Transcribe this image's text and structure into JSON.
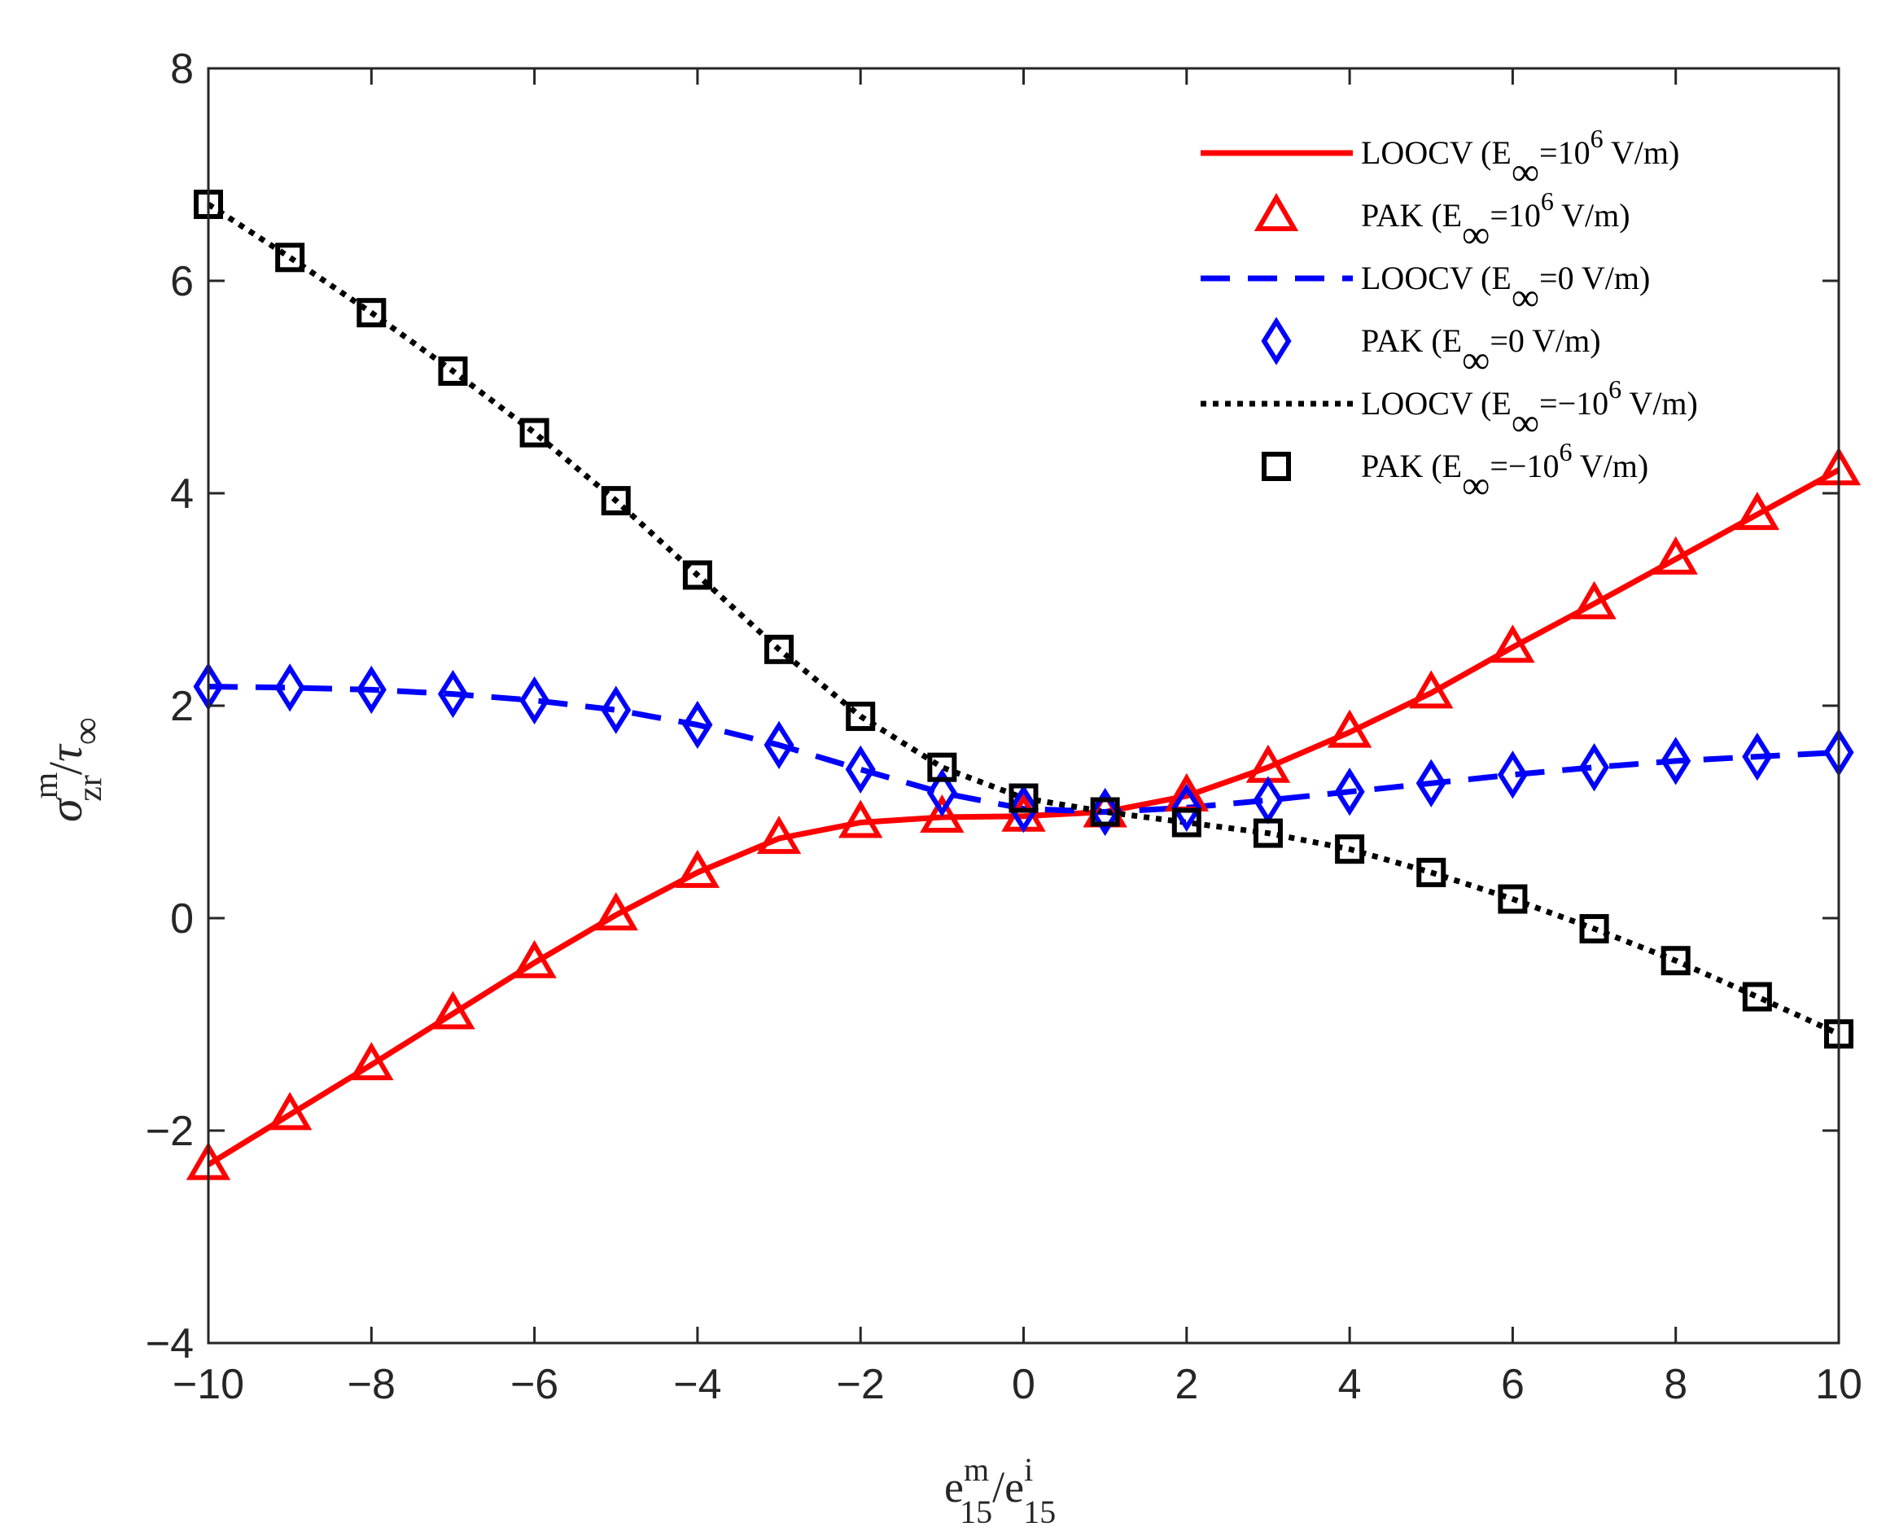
{
  "chart_data": {
    "type": "line",
    "xlabel": {
      "base": "e",
      "sup": "m",
      "sub": "15",
      "sep": "/",
      "base2": "e",
      "sup2": "i",
      "sub2": "15"
    },
    "ylabel": {
      "sigma": "σ",
      "sup": "m",
      "sub": "zr",
      "sep": "/",
      "tau": "τ",
      "tau_sub": "∞"
    },
    "xlim": [
      -10,
      10
    ],
    "ylim": [
      -4,
      8
    ],
    "xticks": [
      -10,
      -8,
      -6,
      -4,
      -2,
      0,
      2,
      4,
      6,
      8,
      10
    ],
    "xtick_labels": [
      "−10",
      "−8",
      "−6",
      "−4",
      "−2",
      "0",
      "2",
      "4",
      "6",
      "8",
      "10"
    ],
    "yticks": [
      -4,
      -2,
      0,
      2,
      4,
      6,
      8
    ],
    "ytick_labels": [
      "−4",
      "−2",
      "0",
      "2",
      "4",
      "6",
      "8"
    ],
    "grid": false,
    "legend_position": "top-right",
    "x": [
      -10,
      -9,
      -8,
      -7,
      -6,
      -5,
      -4,
      -3,
      -2,
      -1,
      0,
      1,
      2,
      3,
      4,
      5,
      6,
      7,
      8,
      9,
      10
    ],
    "series": [
      {
        "name": "LOOCV (E∞=10^6 V/m)",
        "legend": {
          "pre": "LOOCV (E",
          "sub": "∞",
          "mid": "=10",
          "sup": "6",
          "post": " V/m)"
        },
        "style": "solid",
        "marker": "none",
        "color": "#ff0000",
        "values": [
          -2.32,
          -1.85,
          -1.38,
          -0.9,
          -0.42,
          0.03,
          0.43,
          0.75,
          0.9,
          0.95,
          0.96,
          1.0,
          1.15,
          1.42,
          1.75,
          2.12,
          2.55,
          2.96,
          3.38,
          3.8,
          4.22
        ]
      },
      {
        "name": "PAK (E∞=10^6 V/m)",
        "legend": {
          "pre": "PAK (E",
          "sub": "∞",
          "mid": "=10",
          "sup": "6",
          "post": " V/m)"
        },
        "style": "none",
        "marker": "triangle",
        "color": "#ff0000",
        "values": [
          -2.32,
          -1.85,
          -1.38,
          -0.9,
          -0.42,
          0.03,
          0.43,
          0.75,
          0.9,
          0.95,
          0.96,
          1.0,
          1.15,
          1.42,
          1.75,
          2.12,
          2.55,
          2.96,
          3.38,
          3.8,
          4.22
        ]
      },
      {
        "name": "LOOCV (E∞=0 V/m)",
        "legend": {
          "pre": "LOOCV (E",
          "sub": "∞",
          "mid": "=0 V/m)",
          "sup": "",
          "post": ""
        },
        "style": "dashed",
        "marker": "none",
        "color": "#0000ff",
        "values": [
          2.18,
          2.17,
          2.15,
          2.11,
          2.05,
          1.96,
          1.82,
          1.63,
          1.4,
          1.18,
          1.03,
          1.0,
          1.04,
          1.11,
          1.19,
          1.27,
          1.35,
          1.42,
          1.48,
          1.52,
          1.56
        ]
      },
      {
        "name": "PAK (E∞=0 V/m)",
        "legend": {
          "pre": "PAK (E",
          "sub": "∞",
          "mid": "=0 V/m)",
          "sup": "",
          "post": ""
        },
        "style": "none",
        "marker": "diamond",
        "color": "#0000ff",
        "values": [
          2.18,
          2.17,
          2.15,
          2.11,
          2.05,
          1.96,
          1.82,
          1.63,
          1.4,
          1.18,
          1.03,
          1.0,
          1.04,
          1.11,
          1.19,
          1.27,
          1.35,
          1.42,
          1.48,
          1.52,
          1.56
        ]
      },
      {
        "name": "LOOCV (E∞=−10^6 V/m)",
        "legend": {
          "pre": "LOOCV (E",
          "sub": "∞",
          "mid": "=−10",
          "sup": "6",
          "post": " V/m)"
        },
        "style": "dotted",
        "marker": "none",
        "color": "#000000",
        "values": [
          6.72,
          6.22,
          5.7,
          5.15,
          4.57,
          3.93,
          3.23,
          2.53,
          1.9,
          1.42,
          1.13,
          1.0,
          0.9,
          0.8,
          0.65,
          0.43,
          0.18,
          -0.1,
          -0.4,
          -0.74,
          -1.09
        ]
      },
      {
        "name": "PAK (E∞=−10^6 V/m)",
        "legend": {
          "pre": "PAK (E",
          "sub": "∞",
          "mid": "=−10",
          "sup": "6",
          "post": " V/m)"
        },
        "style": "none",
        "marker": "square",
        "color": "#000000",
        "values": [
          6.72,
          6.22,
          5.7,
          5.15,
          4.57,
          3.93,
          3.23,
          2.53,
          1.9,
          1.42,
          1.13,
          1.0,
          0.9,
          0.8,
          0.65,
          0.43,
          0.18,
          -0.1,
          -0.4,
          -0.74,
          -1.09
        ]
      }
    ]
  }
}
